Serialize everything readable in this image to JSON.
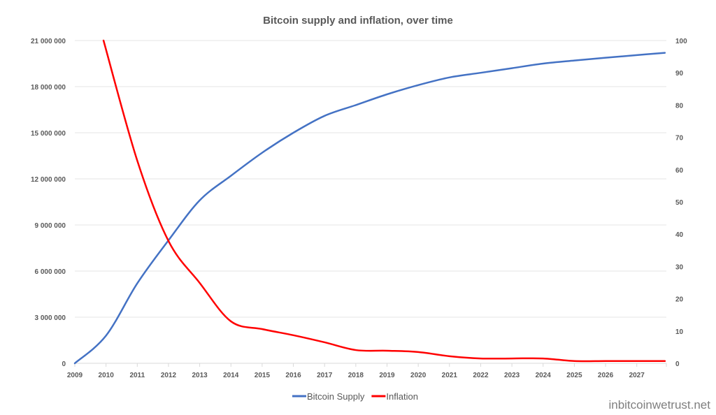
{
  "chart_data": {
    "type": "line",
    "title": "Bitcoin supply and inflation, over time",
    "xlabel": "",
    "ylabel": "",
    "x_ticks": [
      "2009",
      "2010",
      "2011",
      "2012",
      "2013",
      "2014",
      "2015",
      "2016",
      "2017",
      "2018",
      "2019",
      "2020",
      "2021",
      "2022",
      "2023",
      "2024",
      "2025",
      "2026",
      "2027"
    ],
    "xlim": [
      2009,
      2027.95
    ],
    "ylim_left": [
      0,
      21000000
    ],
    "y_ticks_left": [
      "0",
      "3 000 000",
      "6 000 000",
      "9 000 000",
      "12 000 000",
      "15 000 000",
      "18 000 000",
      "21 000 000"
    ],
    "ylim_right": [
      0,
      100
    ],
    "y_ticks_right": [
      "0",
      "10",
      "20",
      "30",
      "40",
      "50",
      "60",
      "70",
      "80",
      "90",
      "100"
    ],
    "grid": true,
    "legend": "bottom",
    "series": [
      {
        "name": "Bitcoin Supply",
        "axis": "left",
        "color": "#4472C4",
        "x": [
          2009,
          2010,
          2011,
          2012,
          2013,
          2014,
          2015,
          2016,
          2017,
          2018,
          2019,
          2020,
          2021,
          2022,
          2023,
          2024,
          2025,
          2026,
          2027,
          2027.9
        ],
        "values": [
          0,
          1800000,
          5200000,
          8000000,
          10600000,
          12200000,
          13700000,
          15000000,
          16100000,
          16800000,
          17500000,
          18100000,
          18600000,
          18900000,
          19200000,
          19500000,
          19700000,
          19880000,
          20050000,
          20200000
        ]
      },
      {
        "name": "Inflation",
        "axis": "right",
        "color": "#FF0000",
        "x": [
          2009.92,
          2011,
          2012,
          2013,
          2014,
          2015,
          2016,
          2017,
          2018,
          2019,
          2020,
          2021,
          2022,
          2023,
          2024,
          2025,
          2026,
          2027,
          2027.9
        ],
        "values": [
          100,
          62.8,
          37.9,
          24.9,
          13,
          10.6,
          8.7,
          6.5,
          4.1,
          3.9,
          3.5,
          2.2,
          1.5,
          1.5,
          1.5,
          0.7,
          0.7,
          0.7,
          0.7
        ]
      }
    ]
  },
  "watermark": "inbitcoinwetrust.net"
}
